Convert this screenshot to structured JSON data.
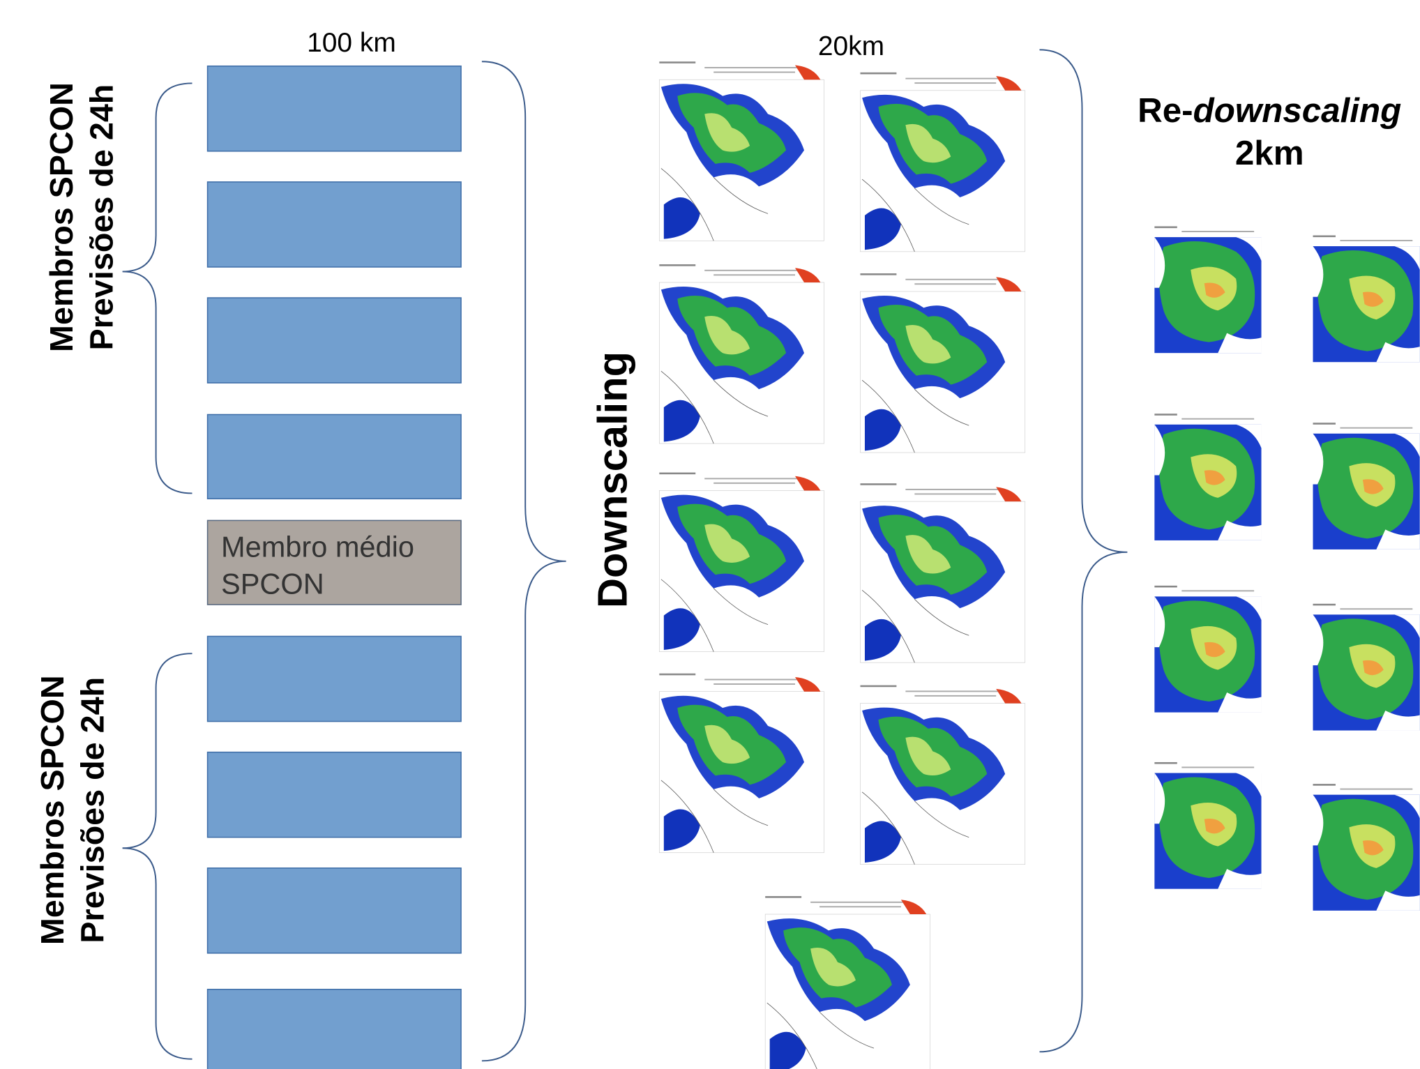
{
  "labels": {
    "left_res": "100 km",
    "mid_res": "20km",
    "right_title": {
      "prefix": "Re-",
      "italic": "downscaling",
      "res": "2km"
    }
  },
  "groups": [
    {
      "line1": "Membros SPCON",
      "line2": "Previsões de 24h"
    },
    {
      "line1": "Membros SPCON",
      "line2": "Previsões de 24h"
    }
  ],
  "mean_member": {
    "line1": "Membro médio",
    "line2": "SPCON"
  },
  "process": "Downscaling"
}
